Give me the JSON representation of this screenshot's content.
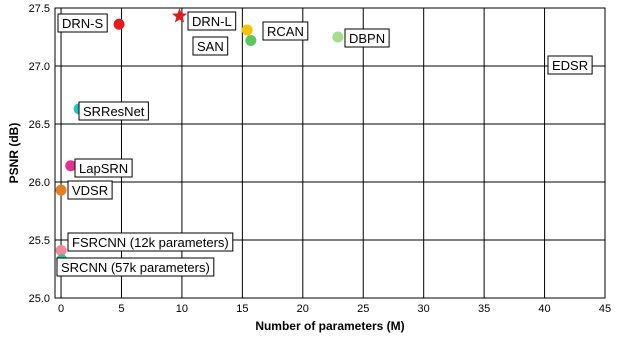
{
  "chart_data": {
    "type": "scatter",
    "title": "",
    "xlabel": "Number of parameters (M)",
    "ylabel": "PSNR (dB)",
    "xlim": [
      -0.5,
      45
    ],
    "ylim": [
      25.0,
      27.5
    ],
    "xticks": [
      0,
      5,
      10,
      15,
      20,
      25,
      30,
      35,
      40,
      45
    ],
    "yticks": [
      25.0,
      25.5,
      26.0,
      26.5,
      27.0,
      27.5
    ],
    "grid": true,
    "points": [
      {
        "label": "DRN-S",
        "x": 4.8,
        "y": 27.36,
        "color": "#e41a1c",
        "marker": "circle"
      },
      {
        "label": "DRN-L",
        "x": 9.8,
        "y": 27.43,
        "color": "#e41a1c",
        "marker": "star"
      },
      {
        "label": "RCAN",
        "x": 15.4,
        "y": 27.31,
        "color": "#f5c400",
        "marker": "circle"
      },
      {
        "label": "SAN",
        "x": 15.7,
        "y": 27.22,
        "color": "#5cc85c",
        "marker": "circle"
      },
      {
        "label": "DBPN",
        "x": 22.9,
        "y": 27.25,
        "color": "#a6dd8c",
        "marker": "circle"
      },
      {
        "label": "EDSR",
        "x": 43.0,
        "y": 27.03,
        "color": "#f08a9a",
        "marker": "circle"
      },
      {
        "label": "SRResNet",
        "x": 1.5,
        "y": 26.63,
        "color": "#1fc4c4",
        "marker": "circle"
      },
      {
        "label": "LapSRN",
        "x": 0.8,
        "y": 26.14,
        "color": "#e0338f",
        "marker": "circle"
      },
      {
        "label": "VDSR",
        "x": 0.0,
        "y": 25.93,
        "color": "#e67e22",
        "marker": "circle"
      },
      {
        "label": "FSRCNN (12k parameters)",
        "x": 0.01,
        "y": 25.41,
        "color": "#f08a9a",
        "marker": "circle"
      },
      {
        "label": "SRCNN (57k parameters)",
        "x": 0.06,
        "y": 25.33,
        "color": "#2ec4a0",
        "marker": "circle"
      }
    ]
  }
}
